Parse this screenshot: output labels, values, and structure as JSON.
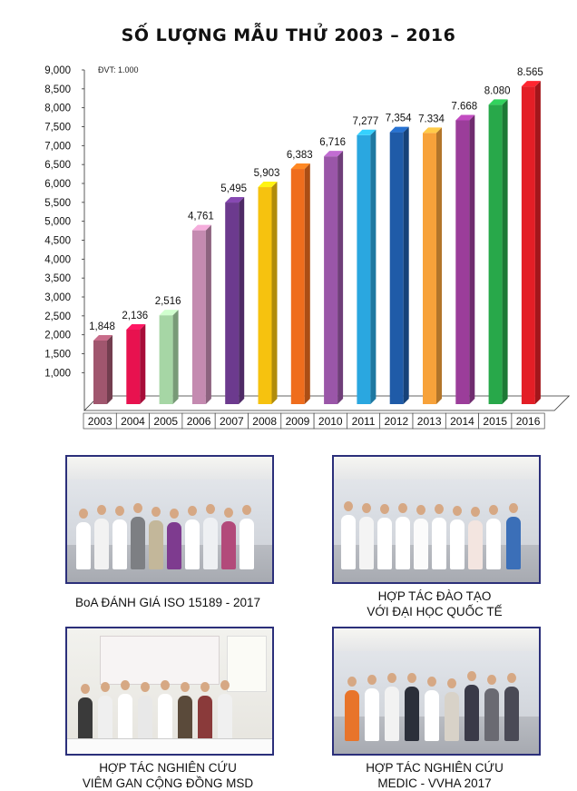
{
  "chart_data": {
    "type": "bar",
    "title": "SỐ LƯỢNG MẪU THỬ 2003 – 2016",
    "unit_note": "ĐVT: 1.000",
    "categories": [
      "2003",
      "2004",
      "2005",
      "2006",
      "2007",
      "2008",
      "2009",
      "2010",
      "2011",
      "2012",
      "2013",
      "2014",
      "2015",
      "2016"
    ],
    "values": [
      1848,
      2136,
      2516,
      4761,
      5495,
      5903,
      6383,
      6716,
      7277,
      7354,
      7334,
      7668,
      8080,
      8565
    ],
    "value_labels": [
      "1,848",
      "2,136",
      "2,516",
      "4,761",
      "5,495",
      "5,903",
      "6,383",
      "6,716",
      "7,277",
      "7,354",
      "7.334",
      "7.668",
      "8.080",
      "8.565"
    ],
    "colors": [
      "#a0566e",
      "#e8124f",
      "#a6d6a5",
      "#c48ab0",
      "#6c3a8e",
      "#f6c20f",
      "#ef6d1d",
      "#9a56a8",
      "#2aa7e0",
      "#1f5ba8",
      "#f7a23a",
      "#9b3d9a",
      "#28a84a",
      "#e31e26"
    ],
    "ylim": [
      0,
      9000
    ],
    "yticks": [
      "1,000",
      "1,500",
      "2,000",
      "2,500",
      "3,000",
      "3,500",
      "4,000",
      "4,500",
      "5,000",
      "5,500",
      "6,000",
      "6,500",
      "7,000",
      "7,500",
      "8,000",
      "8,500",
      "9,000"
    ],
    "ytick_values": [
      1000,
      1500,
      2000,
      2500,
      3000,
      3500,
      4000,
      4500,
      5000,
      5500,
      6000,
      6500,
      7000,
      7500,
      8000,
      8500,
      9000
    ],
    "xlabel": "",
    "ylabel": "",
    "grid": false,
    "legend": "none"
  },
  "photos": [
    {
      "caption_lines": [
        "BoA ĐÁNH GIÁ ISO 15189 - 2017"
      ]
    },
    {
      "caption_lines": [
        "HỢP TÁC ĐÀO TẠO",
        "VỚI ĐẠI HỌC QUỐC TẾ"
      ]
    },
    {
      "caption_lines": [
        "HỢP TÁC NGHIÊN CỨU",
        "VIÊM GAN CỘNG ĐỒNG MSD"
      ]
    },
    {
      "caption_lines": [
        "HỢP TÁC NGHIÊN CỨU",
        "MEDIC - VVHA 2017"
      ]
    }
  ]
}
